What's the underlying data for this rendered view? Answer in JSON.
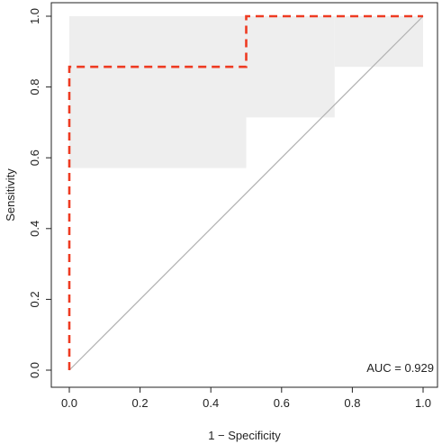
{
  "chart_data": {
    "type": "line",
    "xlabel": "1 − Specificity",
    "ylabel": "Sensitivity",
    "xlim": [
      0,
      1
    ],
    "ylim": [
      0,
      1
    ],
    "xticks": [
      "0.0",
      "0.2",
      "0.4",
      "0.6",
      "0.8",
      "1.0"
    ],
    "yticks": [
      "0.0",
      "0.2",
      "0.4",
      "0.6",
      "0.8",
      "1.0"
    ],
    "grid": false,
    "legend": "none",
    "annotation": "AUC = 0.929",
    "roc_curve": {
      "x": [
        0.0,
        0.0,
        0.5,
        0.5,
        1.0
      ],
      "y": [
        0.0,
        0.857,
        0.857,
        1.0,
        1.0
      ],
      "color": "#ee3b22",
      "style": "dashed"
    },
    "diagonal": {
      "x": [
        0,
        1
      ],
      "y": [
        0,
        1
      ],
      "color": "#b0b0b0"
    },
    "confidence_band": {
      "color": "#eeeeee",
      "rects": [
        {
          "x0": 0.0,
          "x1": 0.5,
          "y0": 0.571,
          "y1": 1.0
        },
        {
          "x0": 0.5,
          "x1": 0.75,
          "y0": 0.714,
          "y1": 1.0
        },
        {
          "x0": 0.75,
          "x1": 1.0,
          "y0": 0.857,
          "y1": 1.0
        }
      ]
    }
  }
}
